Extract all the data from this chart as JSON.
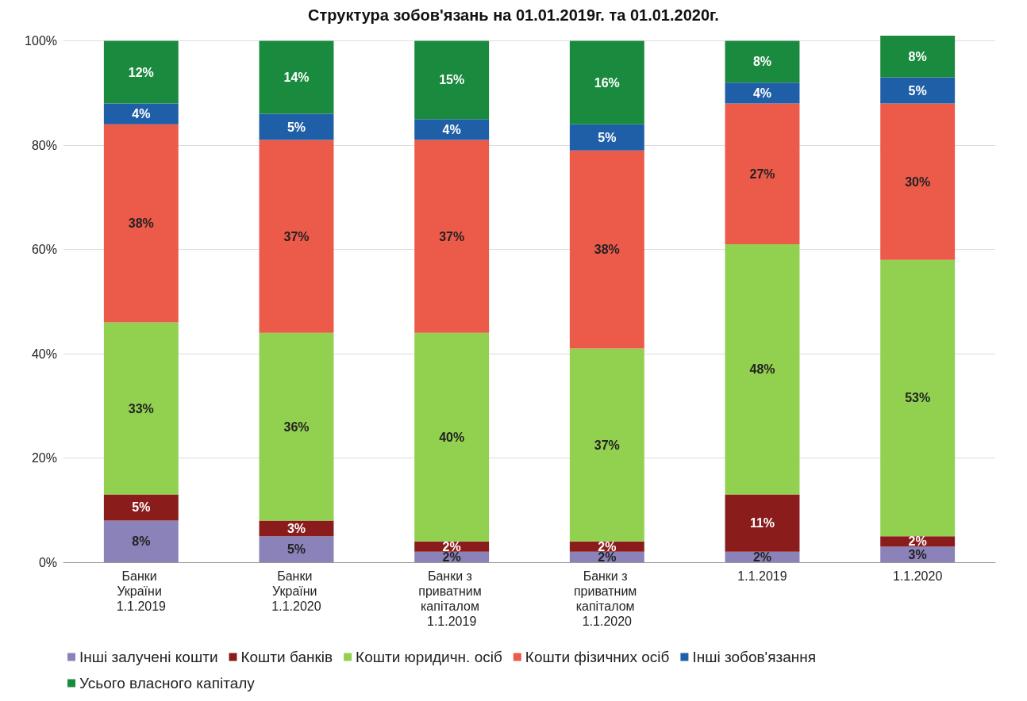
{
  "chart_data": {
    "type": "bar",
    "title": "Структура зобов'язань на 01.01.2019г. та 01.01.2020г.",
    "stacked": true,
    "categories": [
      "Банки України 1.1.2019",
      "Банки України 1.1.2020",
      "Банки з приватним капіталом 1.1.2019",
      "Банки з приватним капіталом 1.1.2020",
      "1.1.2019",
      "1.1.2020"
    ],
    "series": [
      {
        "name": "Інші залучені кошти",
        "color": "#8a82b8",
        "values": [
          8,
          5,
          2,
          2,
          2,
          3
        ],
        "value_labels": [
          "8%",
          "5%",
          "2%",
          "2%",
          "2%",
          "3%"
        ]
      },
      {
        "name": "Кошти банків",
        "color": "#8b1c1c",
        "values": [
          5,
          3,
          2,
          2,
          11,
          2
        ],
        "value_labels": [
          "5%",
          "3%",
          "2%",
          "2%",
          "11%",
          "2%"
        ]
      },
      {
        "name": "Кошти юридичн. осіб",
        "color": "#92d050",
        "values": [
          33,
          36,
          40,
          37,
          48,
          53
        ],
        "value_labels": [
          "33%",
          "36%",
          "40%",
          "37%",
          "48%",
          "53%"
        ]
      },
      {
        "name": "Кошти фізичних осіб",
        "color": "#ec5a4a",
        "values": [
          38,
          37,
          37,
          38,
          27,
          30
        ],
        "value_labels": [
          "38%",
          "37%",
          "37%",
          "38%",
          "27%",
          "30%"
        ]
      },
      {
        "name": "Інші зобов'язання",
        "color": "#1f5fa8",
        "values": [
          4,
          5,
          4,
          5,
          4,
          5
        ],
        "value_labels": [
          "4%",
          "5%",
          "4%",
          "5%",
          "4%",
          "5%"
        ]
      },
      {
        "name": "Усього власного капіталу",
        "color": "#1a8a3e",
        "values": [
          12,
          14,
          15,
          16,
          8,
          8
        ],
        "value_labels": [
          "12%",
          "14%",
          "15%",
          "16%",
          "8%",
          "8%"
        ]
      }
    ],
    "ylim": [
      0,
      101
    ],
    "yticks": [
      {
        "value": 0,
        "label": "0%"
      },
      {
        "value": 20,
        "label": "20%"
      },
      {
        "value": 40,
        "label": "40%"
      },
      {
        "value": 60,
        "label": "60%"
      },
      {
        "value": 80,
        "label": "80%"
      },
      {
        "value": 100,
        "label": "100%"
      }
    ],
    "grid": "y",
    "legend": "bottom"
  }
}
